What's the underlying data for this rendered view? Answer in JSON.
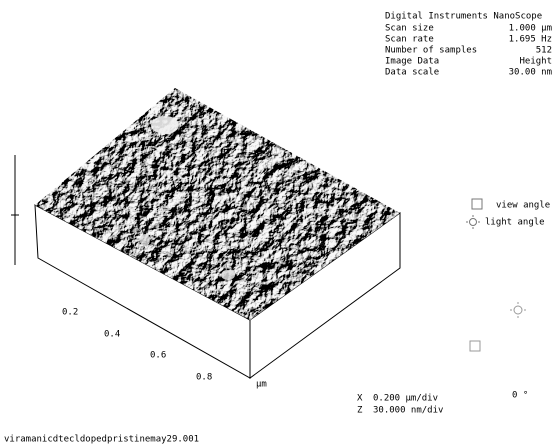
{
  "info": {
    "title": "Digital Instruments NanoScope",
    "rows": [
      [
        "Scan size",
        "1.000 µm"
      ],
      [
        "Scan rate",
        "1.695 Hz"
      ],
      [
        "Number of samples",
        "512"
      ],
      [
        "Image Data",
        "Height"
      ],
      [
        "Data scale",
        "30.00 nm"
      ]
    ]
  },
  "axis": {
    "ticks": [
      "0.2",
      "0.4",
      "0.6",
      "0.8"
    ],
    "unit": "µm"
  },
  "controls": {
    "view_angle": "view angle",
    "light_angle": "light angle",
    "angle": "0 °"
  },
  "scale": {
    "x_label": "X",
    "x": "0.200 µm/div",
    "z_label": "Z",
    "z": "30.000 nm/div"
  },
  "filename": "viramanicdtecldopedpristinemay29.001"
}
